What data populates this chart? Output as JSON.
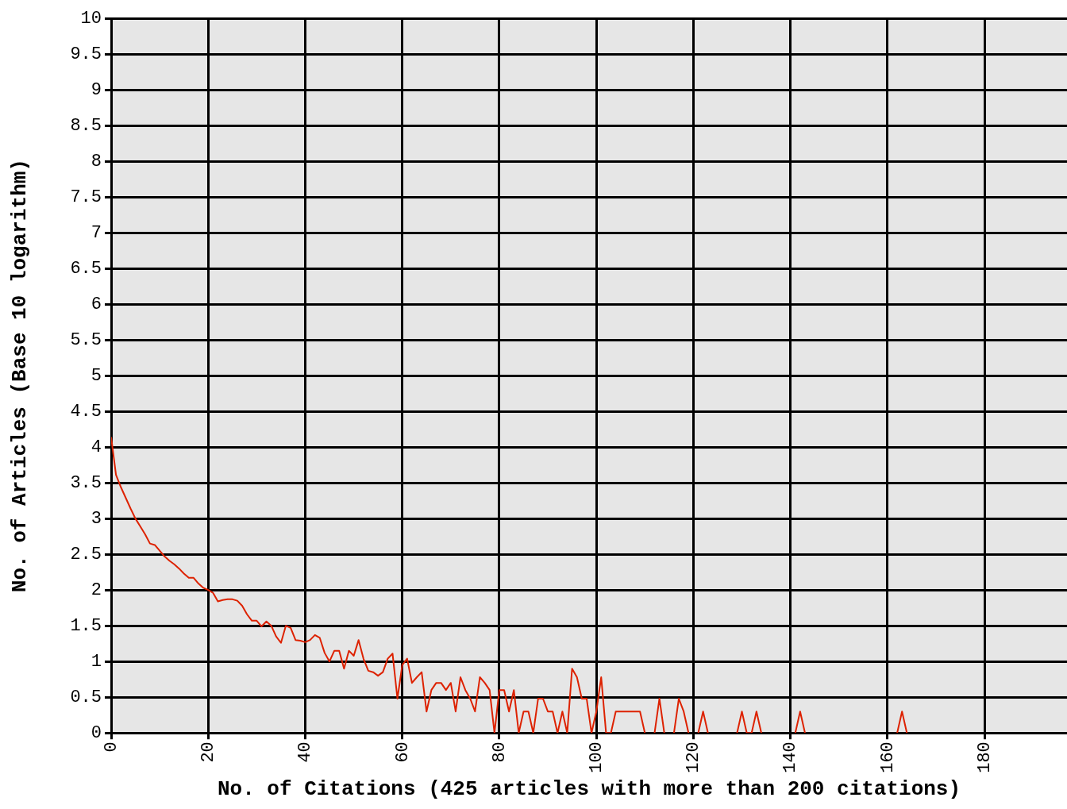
{
  "chart_data": {
    "type": "line",
    "xlabel": "No. of Citations (425 articles with more than 200 citations)",
    "ylabel": "No. of Articles (Base 10 logarithm)",
    "x": [
      0,
      1,
      2,
      3,
      4,
      5,
      6,
      7,
      8,
      9,
      10,
      11,
      12,
      13,
      14,
      15,
      16,
      17,
      18,
      19,
      20,
      21,
      22,
      23,
      24,
      25,
      26,
      27,
      28,
      29,
      30,
      31,
      32,
      33,
      34,
      35,
      36,
      37,
      38,
      39,
      40,
      41,
      42,
      43,
      44,
      45,
      46,
      47,
      48,
      49,
      50,
      51,
      52,
      53,
      54,
      55,
      56,
      57,
      58,
      59,
      60,
      61,
      62,
      63,
      64,
      65,
      66,
      67,
      68,
      69,
      70,
      71,
      72,
      73,
      74,
      75,
      76,
      77,
      78,
      79,
      80,
      81,
      82,
      83,
      84,
      85,
      86,
      87,
      88,
      89,
      90,
      91,
      92,
      93,
      94,
      95,
      96,
      97,
      98,
      99,
      100,
      101,
      102,
      103,
      104,
      105,
      106,
      107,
      108,
      109,
      110,
      111,
      112,
      113,
      114,
      115,
      116,
      117,
      118,
      119,
      120,
      121,
      122,
      123,
      124,
      125,
      126,
      127,
      128,
      129,
      130,
      131,
      132,
      133,
      134,
      135,
      136,
      137,
      138,
      139,
      140,
      141,
      142,
      143,
      144,
      145,
      146,
      147,
      148,
      149,
      150,
      151,
      152,
      153,
      154,
      155,
      156,
      157,
      158,
      159,
      160,
      161,
      162,
      163,
      164
    ],
    "series": [
      {
        "color": "#dd2200",
        "values": [
          4.14,
          3.61,
          3.44,
          3.29,
          3.14,
          3.0,
          2.89,
          2.78,
          2.65,
          2.63,
          2.55,
          2.47,
          2.41,
          2.36,
          2.3,
          2.23,
          2.17,
          2.17,
          2.09,
          2.03,
          2.0,
          1.96,
          1.84,
          1.86,
          1.87,
          1.87,
          1.85,
          1.78,
          1.66,
          1.57,
          1.57,
          1.49,
          1.56,
          1.5,
          1.35,
          1.26,
          1.5,
          1.47,
          1.3,
          1.29,
          1.27,
          1.3,
          1.37,
          1.33,
          1.12,
          1.0,
          1.15,
          1.15,
          0.9,
          1.15,
          1.08,
          1.3,
          1.04,
          0.87,
          0.85,
          0.8,
          0.85,
          1.04,
          1.11,
          0.48,
          0.95,
          1.04,
          0.7,
          0.78,
          0.85,
          0.3,
          0.6,
          0.7,
          0.7,
          0.6,
          0.7,
          0.3,
          0.78,
          0.6,
          0.48,
          0.3,
          0.78,
          0.7,
          0.6,
          0,
          0.6,
          0.6,
          0.3,
          0.6,
          0,
          0.3,
          0.3,
          0,
          0.48,
          0.48,
          0.3,
          0.3,
          0,
          0.3,
          0,
          0.9,
          0.78,
          0.48,
          0.48,
          0,
          0.3,
          0.78,
          0,
          0,
          0.3,
          0.3,
          0.3,
          0.3,
          0.3,
          0.3,
          0,
          null,
          0,
          0.48,
          0,
          null,
          0,
          0.48,
          0.3,
          0,
          null,
          0,
          0.3,
          0,
          null,
          null,
          null,
          null,
          null,
          0,
          0.3,
          0,
          0,
          0.3,
          0,
          null,
          null,
          null,
          null,
          null,
          null,
          0,
          0.3,
          0,
          null,
          null,
          null,
          null,
          null,
          null,
          null,
          null,
          null,
          null,
          null,
          null,
          null,
          null,
          null,
          null,
          null,
          null,
          0,
          0.3,
          0
        ]
      }
    ],
    "xlim": [
      0,
      197
    ],
    "xticks": [
      0,
      20,
      40,
      60,
      80,
      100,
      120,
      140,
      160,
      180
    ],
    "ylim": [
      0,
      10
    ],
    "yticks": [
      0,
      0.5,
      1,
      1.5,
      2,
      2.5,
      3,
      3.5,
      4,
      4.5,
      5,
      5.5,
      6,
      6.5,
      7,
      7.5,
      8,
      8.5,
      9,
      9.5,
      10
    ],
    "grid": true,
    "legend": false,
    "marker": "none",
    "line_style": "solid"
  }
}
